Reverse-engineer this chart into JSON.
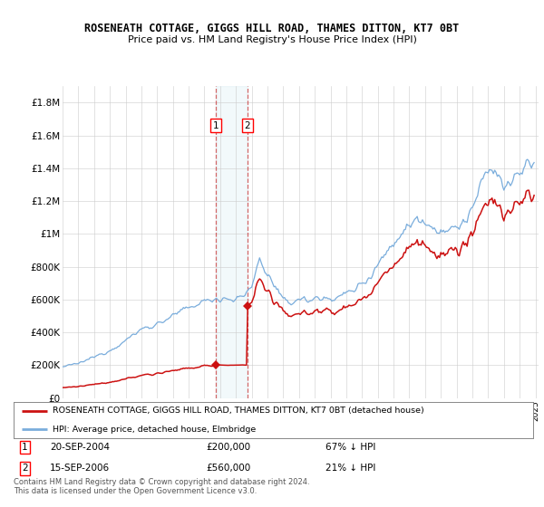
{
  "title": "ROSENEATH COTTAGE, GIGGS HILL ROAD, THAMES DITTON, KT7 0BT",
  "subtitle": "Price paid vs. HM Land Registry's House Price Index (HPI)",
  "ylim": [
    0,
    1900000
  ],
  "yticks": [
    0,
    200000,
    400000,
    600000,
    800000,
    1000000,
    1200000,
    1400000,
    1600000,
    1800000
  ],
  "ytick_labels": [
    "£0",
    "£200K",
    "£400K",
    "£600K",
    "£800K",
    "£1M",
    "£1.2M",
    "£1.4M",
    "£1.6M",
    "£1.8M"
  ],
  "hpi_color": "#7aaddc",
  "price_color": "#cc1111",
  "sale1_year": 2004.72,
  "sale1_price": 200000,
  "sale2_year": 2006.72,
  "sale2_price": 560000,
  "legend_property": "ROSENEATH COTTAGE, GIGGS HILL ROAD, THAMES DITTON, KT7 0BT (detached house)",
  "legend_hpi": "HPI: Average price, detached house, Elmbridge",
  "footnote1": "Contains HM Land Registry data © Crown copyright and database right 2024.",
  "footnote2": "This data is licensed under the Open Government Licence v3.0.",
  "table_row1_date": "20-SEP-2004",
  "table_row1_price": "£200,000",
  "table_row1_hpi": "67% ↓ HPI",
  "table_row2_date": "15-SEP-2006",
  "table_row2_price": "£560,000",
  "table_row2_hpi": "21% ↓ HPI"
}
